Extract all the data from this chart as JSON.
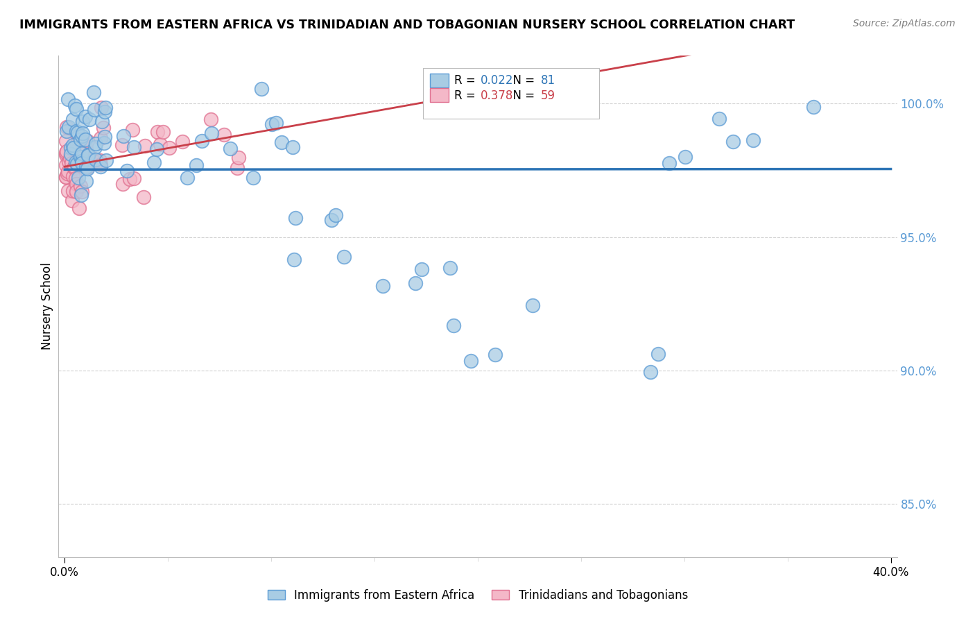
{
  "title": "IMMIGRANTS FROM EASTERN AFRICA VS TRINIDADIAN AND TOBAGONIAN NURSERY SCHOOL CORRELATION CHART",
  "source": "Source: ZipAtlas.com",
  "ylabel": "Nursery School",
  "xlim": [
    0.0,
    40.0
  ],
  "ylim": [
    83.0,
    101.8
  ],
  "yticks": [
    85.0,
    90.0,
    95.0,
    100.0
  ],
  "legend_label_blue": "Immigrants from Eastern Africa",
  "legend_label_pink": "Trinidadians and Tobagonians",
  "R_blue": 0.022,
  "N_blue": 81,
  "R_pink": 0.378,
  "N_pink": 59,
  "blue_scatter_color": "#a8cce4",
  "blue_edge_color": "#5b9bd5",
  "pink_scatter_color": "#f4b8c8",
  "pink_edge_color": "#e07090",
  "line_blue_color": "#2e75b6",
  "line_pink_color": "#c9404a",
  "ytick_color": "#5b9bd5",
  "grid_color": "#d0d0d0"
}
